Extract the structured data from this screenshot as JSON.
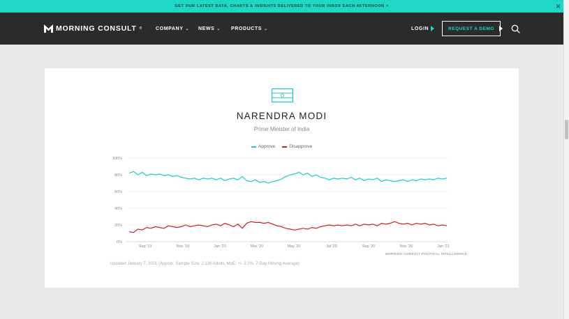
{
  "banner": {
    "text": "GET OUR LATEST DATA, CHARTS & INSIGHTS DELIVERED TO YOUR INBOX EACH AFTERNOON >",
    "close_icon": "×"
  },
  "nav": {
    "logo_text": "MORNING CONSULT",
    "logo_reg": "®",
    "menu": [
      {
        "label": "COMPANY",
        "chevron": "⌄"
      },
      {
        "label": "NEWS",
        "chevron": "⌄"
      },
      {
        "label": "PRODUCTS",
        "chevron": "⌄"
      }
    ],
    "login": "LOGIN",
    "demo": "REQUEST A DEMO",
    "search_icon": "search-icon"
  },
  "leader": {
    "name": "NARENDRA MODI",
    "title": "Prime Minister of India"
  },
  "chart_data": {
    "type": "line",
    "legend": [
      "Approve",
      "Disapprove"
    ],
    "legend_position": "top-center",
    "colors": {
      "Approve": "#1ec9c3",
      "Disapprove": "#cc2020"
    },
    "x_labels": [
      "Sep '19",
      "Nov '19",
      "Jan '20",
      "Mar '20",
      "May '20",
      "Jul '20",
      "Sep '20",
      "Nov '20",
      "Jan '21"
    ],
    "y_labels": [
      "100%",
      "80%",
      "60%",
      "40%",
      "20%",
      "0%"
    ],
    "ylim": [
      0,
      100
    ],
    "grid": true,
    "series": [
      {
        "name": "Approve",
        "values": [
          82,
          84,
          80,
          83,
          79,
          81,
          80,
          81,
          79,
          80,
          78,
          79,
          77,
          76,
          75,
          76,
          74,
          76,
          75,
          76,
          74,
          76,
          73,
          75,
          76,
          74,
          78,
          73,
          72,
          74,
          71,
          72,
          70,
          72,
          73,
          75,
          78,
          80,
          81,
          83,
          80,
          82,
          78,
          80,
          77,
          76,
          74,
          76,
          75,
          76,
          75,
          77,
          74,
          76,
          73,
          75,
          74,
          76,
          72,
          74,
          73,
          72,
          73,
          74,
          72,
          74,
          73,
          75,
          74,
          75,
          74,
          76,
          75,
          76
        ]
      },
      {
        "name": "Disapprove",
        "values": [
          12,
          11,
          15,
          14,
          17,
          16,
          18,
          17,
          16,
          19,
          18,
          17,
          18,
          20,
          18,
          19,
          20,
          19,
          18,
          20,
          21,
          19,
          22,
          20,
          18,
          21,
          16,
          22,
          24,
          23,
          23,
          22,
          23,
          21,
          19,
          18,
          16,
          15,
          14,
          15,
          16,
          15,
          17,
          16,
          18,
          19,
          20,
          19,
          20,
          19,
          20,
          19,
          21,
          19,
          21,
          20,
          21,
          19,
          22,
          21,
          22,
          24,
          22,
          21,
          22,
          20,
          22,
          21,
          22,
          20,
          21,
          19,
          20,
          19
        ]
      }
    ],
    "source": "MORNING CONSULT POLITICAL INTELLIGENCE",
    "footnote": "Updated January 7, 2021 (Approx. Sample Size: 2,126 Adults, MoE: +/- 2.2%, 7-Day Moving Average)"
  }
}
